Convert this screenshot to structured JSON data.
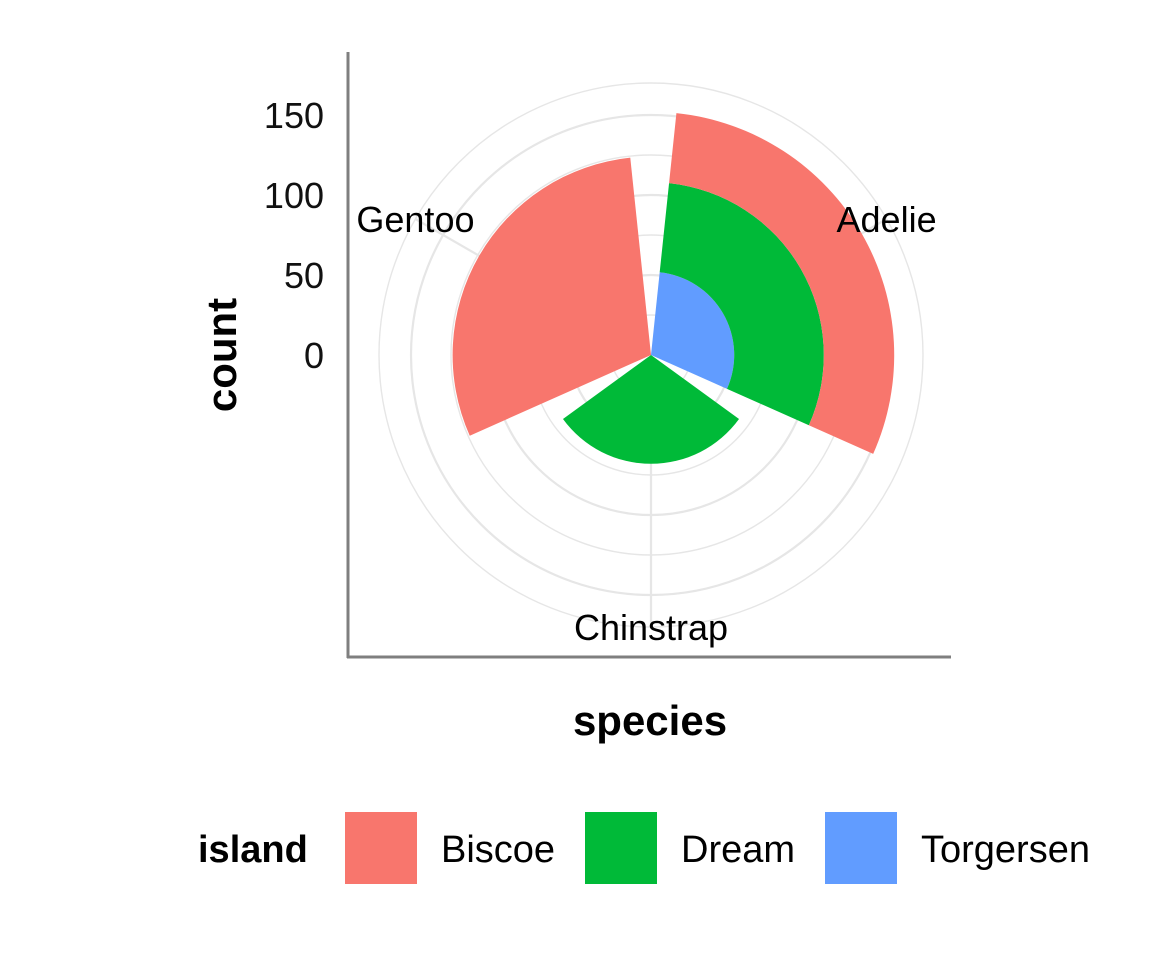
{
  "chart_data": {
    "type": "bar",
    "coord": "polar",
    "position": "stack",
    "xlabel": "species",
    "ylabel": "count",
    "categories": [
      "Adelie",
      "Chinstrap",
      "Gentoo"
    ],
    "y_ticks": [
      "0",
      "50",
      "100",
      "150"
    ],
    "ylim": [
      0,
      152
    ],
    "grid": true,
    "legend": {
      "title": "island",
      "position": "bottom"
    },
    "series": [
      {
        "name": "Biscoe",
        "color": "#F8766D",
        "values": [
          44,
          0,
          124
        ]
      },
      {
        "name": "Dream",
        "color": "#00BA38",
        "values": [
          56,
          68,
          0
        ]
      },
      {
        "name": "Torgersen",
        "color": "#619CFF",
        "values": [
          52,
          0,
          0
        ]
      }
    ]
  }
}
